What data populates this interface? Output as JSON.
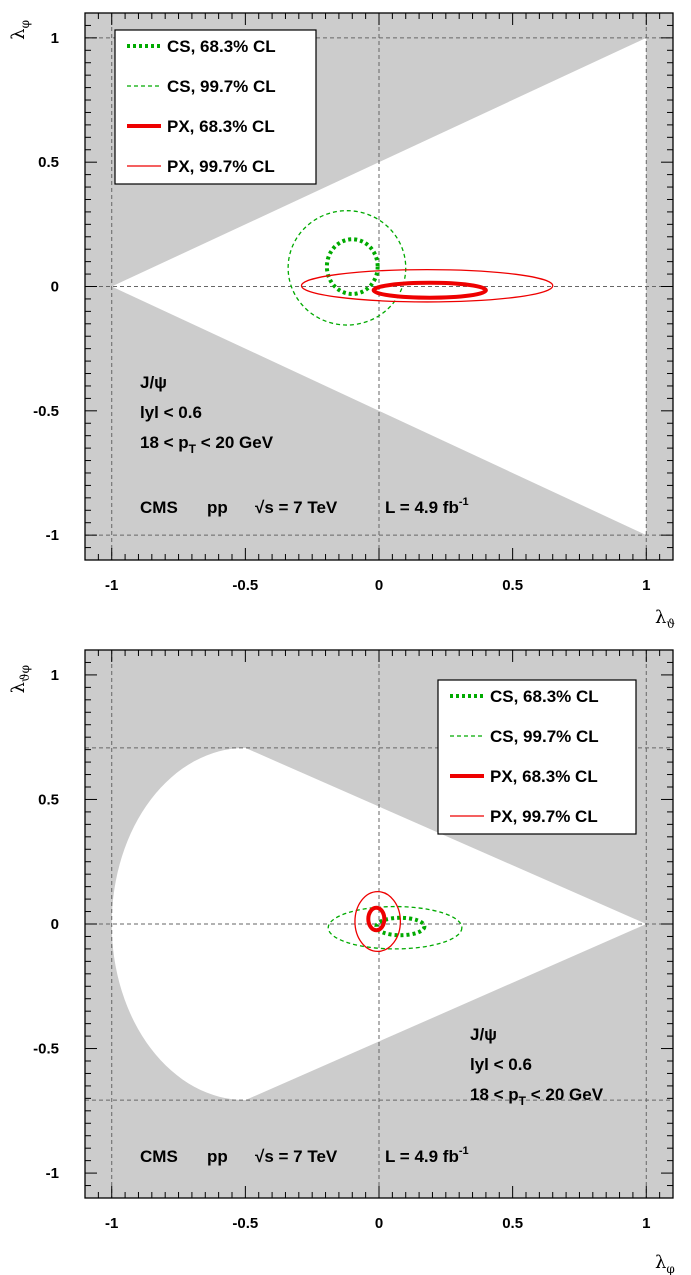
{
  "chart_data": [
    {
      "type": "contour",
      "panel": "top",
      "xlabel": "λ",
      "xlabel_sub": "ϑ",
      "ylabel": "λ",
      "ylabel_sub": "φ",
      "xlim": [
        -1.1,
        1.1
      ],
      "ylim": [
        -1.1,
        1.1
      ],
      "x_ticks": [
        "-1",
        "-0.5",
        "0",
        "0.5",
        "1"
      ],
      "y_ticks": [
        "1",
        "0.5",
        "0",
        "-0.5",
        "-1"
      ],
      "allowed_region": "triangle with vertices (-1,0), (1,1), (1,-1)",
      "legend_position": "top-left",
      "legend": [
        {
          "label": "CS, 68.3% CL",
          "color": "#00aa00",
          "style": "dotted-thick"
        },
        {
          "label": "CS, 99.7% CL",
          "color": "#00aa00",
          "style": "dashed-thin"
        },
        {
          "label": "PX, 68.3% CL",
          "color": "#ee0000",
          "style": "solid-thick"
        },
        {
          "label": "PX, 99.7% CL",
          "color": "#ee0000",
          "style": "solid-thin"
        }
      ],
      "contours": [
        {
          "frame": "CS",
          "cl": "68.3%",
          "center": [
            -0.1,
            0.08
          ],
          "half_width": [
            0.095,
            0.11
          ]
        },
        {
          "frame": "CS",
          "cl": "99.7%",
          "center": [
            -0.12,
            0.075
          ],
          "half_width": [
            0.22,
            0.23
          ]
        },
        {
          "frame": "PX",
          "cl": "68.3%",
          "center": [
            0.19,
            -0.015
          ],
          "half_width": [
            0.21,
            0.03
          ]
        },
        {
          "frame": "PX",
          "cl": "99.7%",
          "center": [
            0.18,
            0.003
          ],
          "half_width": [
            0.47,
            0.065
          ]
        }
      ],
      "annotations": {
        "particle": "J/ψ",
        "rapidity": "lyl < 0.6",
        "pt_prefix": "18 < p",
        "pt_sub": "T",
        "pt_suffix": " < 20 GeV",
        "experiment": "CMS",
        "collision": "pp",
        "energy_prefix": "√",
        "energy_suffix": "s = 7 TeV",
        "lumi": "L = 4.9 fb",
        "lumi_sup": "-1"
      }
    },
    {
      "type": "contour",
      "panel": "bottom",
      "xlabel": "λ",
      "xlabel_sub": "φ",
      "ylabel": "λ",
      "ylabel_sub": "ϑφ",
      "xlim": [
        -1.1,
        1.1
      ],
      "ylim": [
        -1.1,
        1.1
      ],
      "x_ticks": [
        "-1",
        "-0.5",
        "0",
        "0.5",
        "1"
      ],
      "y_ticks": [
        "1",
        "0.5",
        "0",
        "-0.5",
        "-1"
      ],
      "reference_lines_y": [
        0.707,
        -0.707
      ],
      "allowed_region": "ellipse centered (-0.5,0) semi-axes (0.5,0.707) joined to (1,0)",
      "legend_position": "top-right",
      "legend": [
        {
          "label": "CS, 68.3% CL",
          "color": "#00aa00",
          "style": "dotted-thick"
        },
        {
          "label": "CS, 99.7% CL",
          "color": "#00aa00",
          "style": "dashed-thin"
        },
        {
          "label": "PX, 68.3% CL",
          "color": "#ee0000",
          "style": "solid-thick"
        },
        {
          "label": "PX, 99.7% CL",
          "color": "#ee0000",
          "style": "solid-thin"
        }
      ],
      "contours": [
        {
          "frame": "CS",
          "cl": "68.3%",
          "center": [
            0.08,
            -0.01
          ],
          "half_width": [
            0.09,
            0.035
          ]
        },
        {
          "frame": "CS",
          "cl": "99.7%",
          "center": [
            0.06,
            -0.015
          ],
          "half_width": [
            0.25,
            0.085
          ]
        },
        {
          "frame": "PX",
          "cl": "68.3%",
          "center": [
            -0.01,
            0.02
          ],
          "half_width": [
            0.03,
            0.045
          ]
        },
        {
          "frame": "PX",
          "cl": "99.7%",
          "center": [
            -0.005,
            0.01
          ],
          "half_width": [
            0.085,
            0.12
          ]
        }
      ],
      "annotations": {
        "particle": "J/ψ",
        "rapidity": "lyl < 0.6",
        "pt_prefix": "18 < p",
        "pt_sub": "T",
        "pt_suffix": " < 20 GeV",
        "experiment": "CMS",
        "collision": "pp",
        "energy_prefix": "√",
        "energy_suffix": "s = 7 TeV",
        "lumi": "L = 4.9 fb",
        "lumi_sup": "-1"
      }
    }
  ]
}
